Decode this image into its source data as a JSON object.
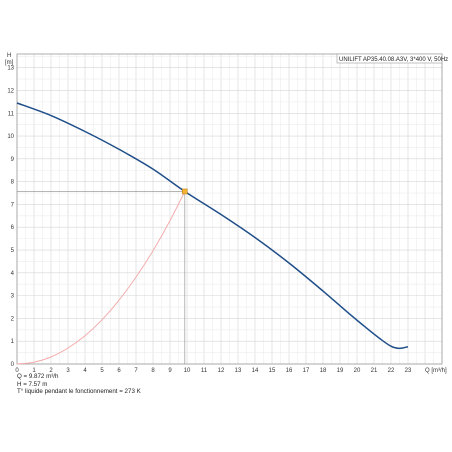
{
  "chart_data": {
    "type": "line",
    "title": "",
    "legend_label": "UNILIFT AP35.40.08.A3V,  3*400 V,  50Hz",
    "legend_position": "top-right",
    "xlabel": "Q [m³/h]",
    "ylabel_line1": "H",
    "ylabel_line2": "[m]",
    "xlim": [
      0,
      25
    ],
    "ylim": [
      0,
      13.6
    ],
    "x_ticks": [
      0,
      1,
      2,
      3,
      4,
      5,
      6,
      7,
      8,
      9,
      10,
      11,
      12,
      13,
      14,
      15,
      16,
      17,
      18,
      19,
      20,
      21,
      22,
      23
    ],
    "y_ticks": [
      0,
      1,
      2,
      3,
      4,
      5,
      6,
      7,
      8,
      9,
      10,
      11,
      12,
      13
    ],
    "grid": true,
    "series": [
      {
        "role": "pump_curve",
        "color": "#1f4e89",
        "x": [
          0,
          2,
          4,
          6,
          8,
          9.872,
          12,
          14,
          16,
          18,
          20,
          22,
          23
        ],
        "y": [
          11.45,
          10.9,
          10.2,
          9.42,
          8.55,
          7.57,
          6.56,
          5.55,
          4.43,
          3.2,
          1.92,
          0.78,
          0.75
        ]
      },
      {
        "role": "system_curve",
        "color": "#f4a7a7",
        "x": [
          0,
          1,
          2,
          3,
          4,
          5,
          6,
          7,
          8,
          9,
          9.872
        ],
        "y": [
          0,
          0.08,
          0.31,
          0.7,
          1.24,
          1.94,
          2.8,
          3.81,
          4.97,
          6.29,
          7.57
        ]
      }
    ],
    "operating_point": {
      "x": 9.872,
      "y": 7.57,
      "color": "#f5b335"
    }
  },
  "readouts": {
    "q": "Q = 9.872 m³/h",
    "h": "H = 7.57 m",
    "t": "T° liquide pendant le fonctionnement = 273 K"
  }
}
